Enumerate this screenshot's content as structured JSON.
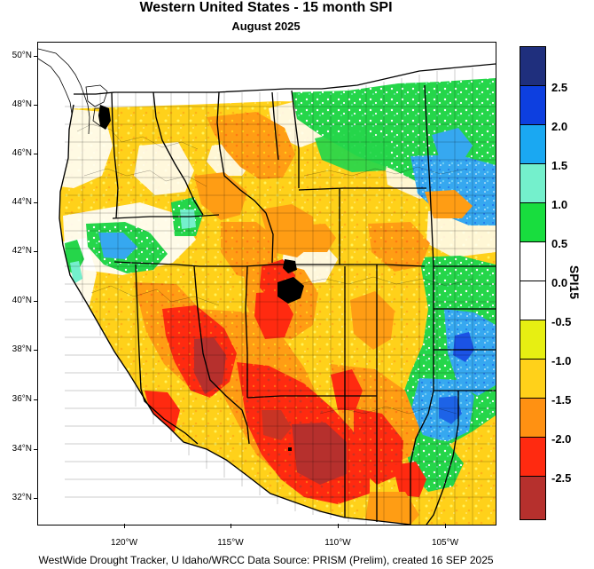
{
  "header": {
    "title": "Western United States - 15 month SPI",
    "subtitle": "August 2025"
  },
  "footer": {
    "credit": "WestWide Drought Tracker, U Idaho/WRCC Data Source: PRISM (Prelim), created 16 SEP 2025"
  },
  "map": {
    "latitude_labels": [
      "50°N",
      "48°N",
      "46°N",
      "44°N",
      "42°N",
      "40°N",
      "38°N",
      "36°N",
      "34°N",
      "32°N"
    ],
    "longitude_labels": [
      "120°W",
      "115°W",
      "110°W",
      "105°W"
    ]
  },
  "legend": {
    "title": "SPI15",
    "labels": [
      "2.5",
      "2.0",
      "1.5",
      "1.0",
      "0.5",
      "0.0",
      "-0.5",
      "-1.0",
      "-1.5",
      "-2.0",
      "-2.5"
    ],
    "colors": [
      "#1f2f7d",
      "#0d3fe0",
      "#1aa8f2",
      "#74f0cc",
      "#18dd3e",
      "#ffffff",
      "#ffffff",
      "#e7ef12",
      "#ffd11a",
      "#ff9112",
      "#ff2a10",
      "#b6302d"
    ]
  },
  "colors": {
    "state_lines": "#000000",
    "county_lines": "#000000",
    "frame": "#000000"
  }
}
